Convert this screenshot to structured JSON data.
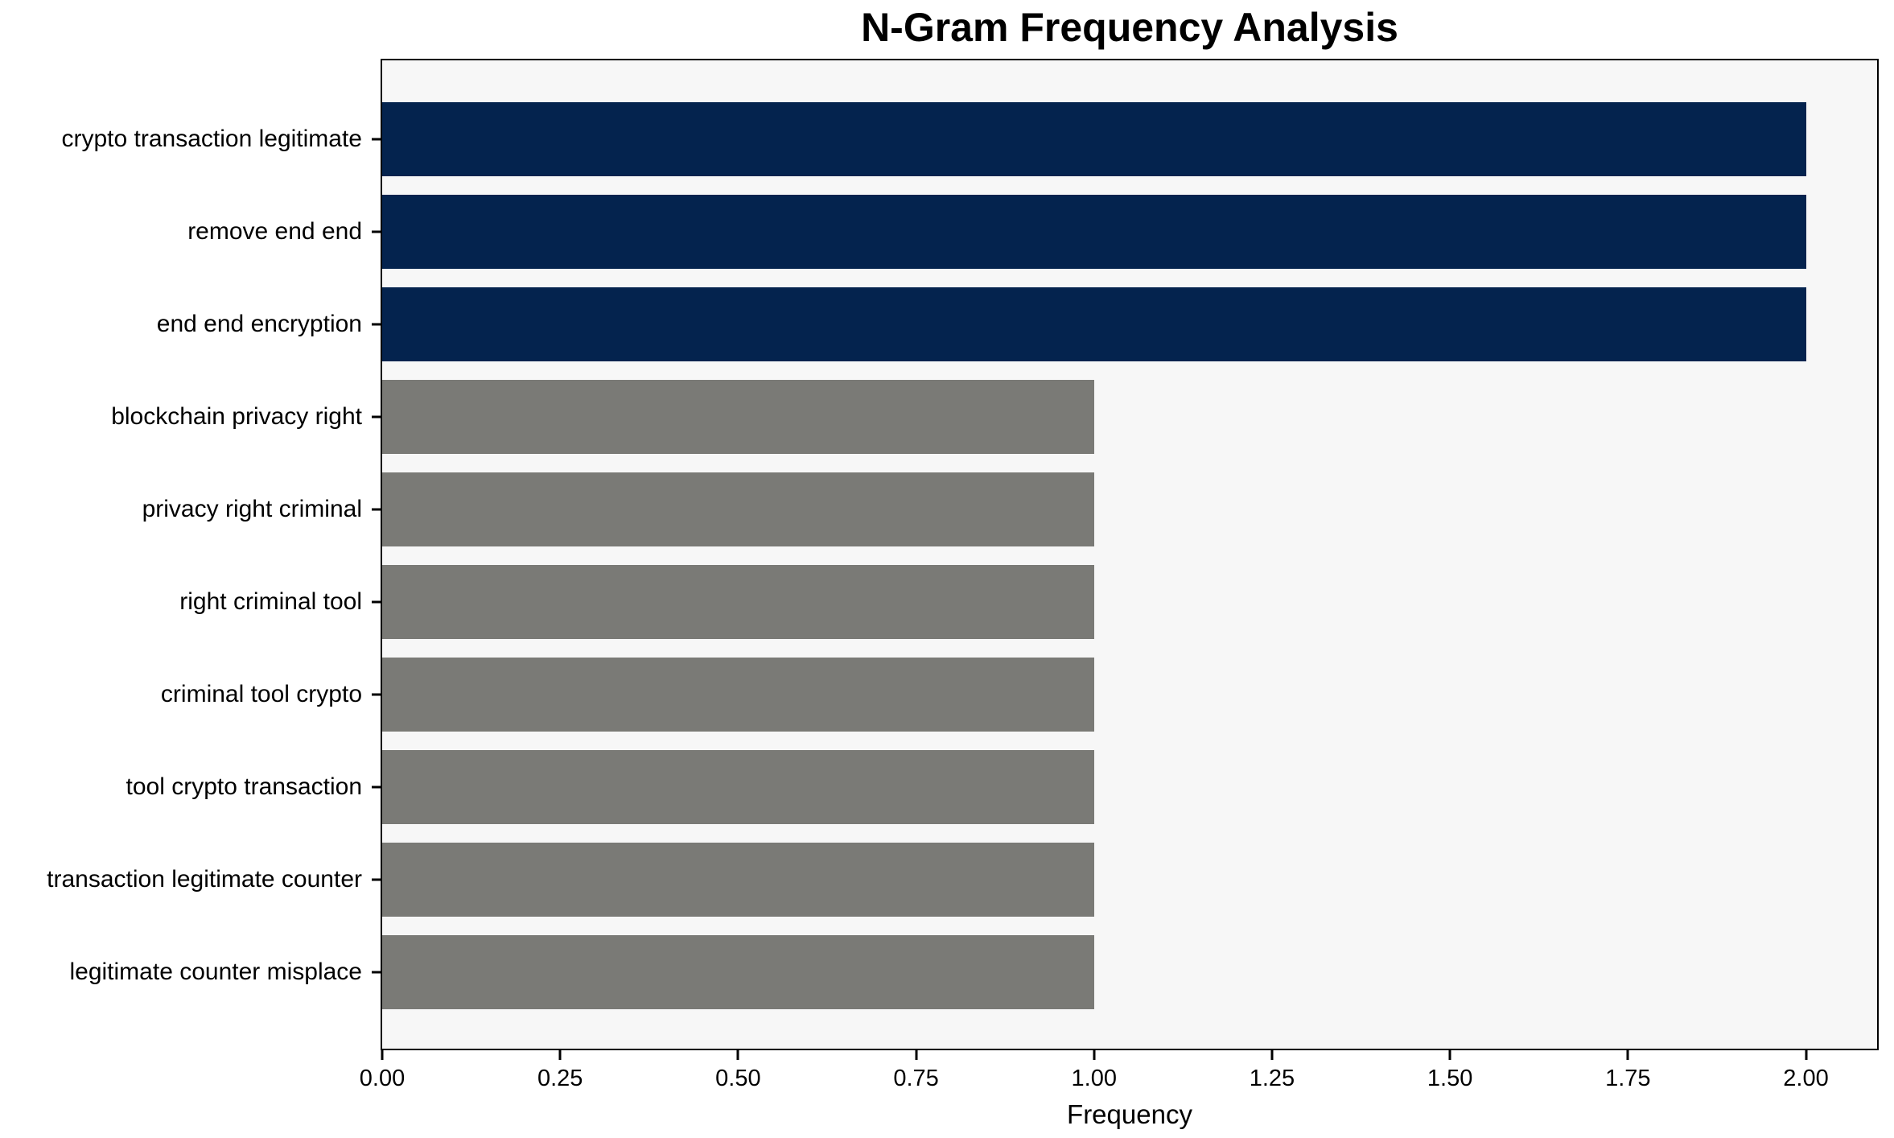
{
  "chart_data": {
    "type": "bar",
    "orientation": "horizontal",
    "title": "N-Gram Frequency Analysis",
    "xlabel": "Frequency",
    "ylabel": "",
    "categories": [
      "crypto transaction legitimate",
      "remove end end",
      "end end encryption",
      "blockchain privacy right",
      "privacy right criminal",
      "right criminal tool",
      "criminal tool crypto",
      "tool crypto transaction",
      "transaction legitimate counter",
      "legitimate counter misplace"
    ],
    "values": [
      2,
      2,
      2,
      1,
      1,
      1,
      1,
      1,
      1,
      1
    ],
    "bar_colors": [
      "#04234e",
      "#04234e",
      "#04234e",
      "#7a7a76",
      "#7a7a76",
      "#7a7a76",
      "#7a7a76",
      "#7a7a76",
      "#7a7a76",
      "#7a7a76"
    ],
    "xlim": [
      0,
      2.1
    ],
    "xticks": [
      {
        "label": "0.00",
        "value": 0.0
      },
      {
        "label": "0.25",
        "value": 0.25
      },
      {
        "label": "0.50",
        "value": 0.5
      },
      {
        "label": "0.75",
        "value": 0.75
      },
      {
        "label": "1.00",
        "value": 1.0
      },
      {
        "label": "1.25",
        "value": 1.25
      },
      {
        "label": "1.50",
        "value": 1.5
      },
      {
        "label": "1.75",
        "value": 1.75
      },
      {
        "label": "2.00",
        "value": 2.0
      }
    ],
    "grid": false,
    "legend_position": "none"
  },
  "colors": {
    "background": "#ffffff",
    "plot_background": "#f7f7f7",
    "axis": "#000000",
    "bar_high": "#04234e",
    "bar_low": "#7a7a76"
  }
}
